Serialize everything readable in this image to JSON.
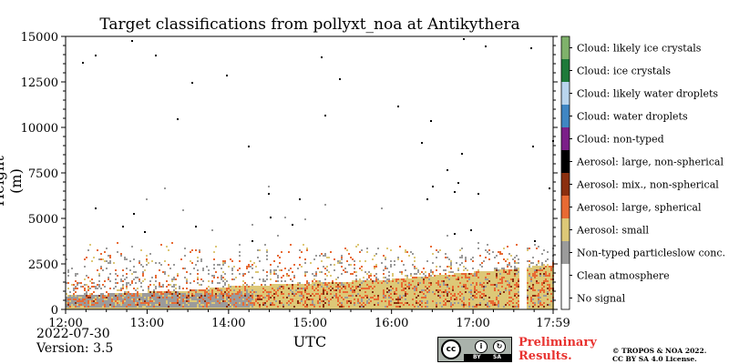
{
  "chart_data": {
    "type": "heatmap",
    "title": "Target classifications from pollyxt_noa at Antikythera",
    "xlabel": "UTC",
    "ylabel": "Height (m)",
    "x_ticks": [
      "12:00",
      "13:00",
      "14:00",
      "15:00",
      "16:00",
      "17:00",
      "17:59"
    ],
    "x_range_hours": [
      12.0,
      17.983
    ],
    "y_ticks": [
      0,
      2500,
      5000,
      7500,
      10000,
      12500,
      15000
    ],
    "y_range_m": [
      0,
      15000
    ],
    "y_tick_labels": [
      "0",
      "2500",
      "5000",
      "7500",
      "10000",
      "12500",
      "15000"
    ],
    "classes": [
      {
        "label": "Cloud: likely ice crystals",
        "color": "#7fb26b"
      },
      {
        "label": "Cloud: ice crystals",
        "color": "#1e7a3a"
      },
      {
        "label": "Cloud: likely water droplets",
        "color": "#b9d5ee"
      },
      {
        "label": "Cloud: water droplets",
        "color": "#3f86c3"
      },
      {
        "label": "Cloud: non-typed",
        "color": "#7b1f88"
      },
      {
        "label": "Aerosol: large, non-spherical",
        "color": "#000000"
      },
      {
        "label": "Aerosol: mix., non-spherical",
        "color": "#8b2f0f"
      },
      {
        "label": "Aerosol: large, spherical",
        "color": "#e86a33"
      },
      {
        "label": "Aerosol: small",
        "color": "#ddc877"
      },
      {
        "label": "Non-typed particleslow conc.",
        "color": "#9b9b9b"
      },
      {
        "label": "Clean atmosphere",
        "color": "#ffffff"
      },
      {
        "label": "No signal",
        "color": "#ffffff"
      }
    ],
    "layers": {
      "dense_aerosol_top_m": [
        800,
        900,
        1000,
        1100,
        1300,
        1400,
        1500,
        1600,
        1700,
        1900,
        2100,
        2300,
        2500
      ],
      "dense_aerosol_top_times": [
        12.0,
        12.5,
        13.0,
        13.5,
        14.0,
        14.5,
        15.0,
        15.5,
        16.0,
        16.5,
        17.0,
        17.5,
        17.98
      ],
      "grey_low_conc_top_m": 1000,
      "sparse_signal_top_m": 3800,
      "no_signal_gap_hours": [
        [
          17.55,
          17.62
        ],
        [
          17.63,
          17.65
        ]
      ]
    }
  },
  "footer": {
    "date": "2022-07-30",
    "version": "Version: 3.5",
    "preliminary_line1": "Preliminary",
    "preliminary_line2": "Results.",
    "copyright_line1": "© TROPOS & NOA 2022.",
    "copyright_line2": "CC BY SA 4.0 License.",
    "cc_badge": {
      "cc": "cc",
      "by": "BY",
      "sa": "SA"
    }
  }
}
